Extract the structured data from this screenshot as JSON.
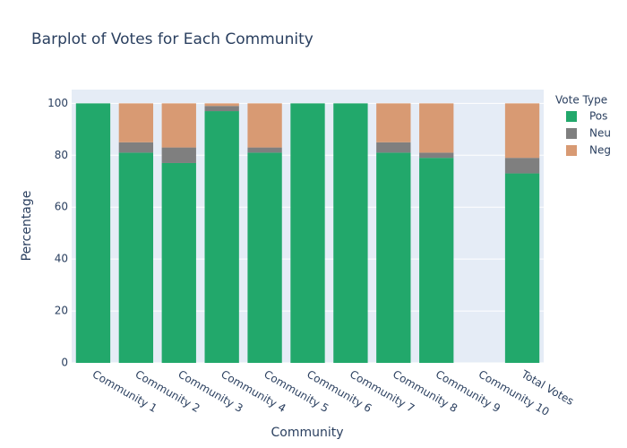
{
  "chart_data": {
    "type": "stacked_bar",
    "title": "Barplot of Votes for Each Community",
    "x_label": "Community",
    "y_label": "Percentage",
    "legend_title": "Vote Type",
    "legend": "top-right",
    "categories": [
      "Community 1",
      "Community 2",
      "Community 3",
      "Community 4",
      "Community 5",
      "Community 6",
      "Community 7",
      "Community 8",
      "Community 9",
      "Community 10",
      "Total Votes"
    ],
    "series": [
      {
        "name": "Pos",
        "color": "#22a86b",
        "values": [
          100,
          81,
          77,
          97,
          81,
          100,
          100,
          81,
          79,
          0,
          73
        ]
      },
      {
        "name": "Neu",
        "color": "#7f7f7f",
        "values": [
          0,
          4,
          6,
          2,
          2,
          0,
          0,
          4,
          2,
          0,
          6
        ]
      },
      {
        "name": "Neg",
        "color": "#d89a73",
        "values": [
          0,
          15,
          17,
          1,
          17,
          0,
          0,
          15,
          19,
          0,
          21
        ]
      }
    ],
    "ylim": [
      0,
      105.3
    ],
    "yticks": [
      0,
      20,
      40,
      60,
      80,
      100
    ],
    "grid": true
  }
}
